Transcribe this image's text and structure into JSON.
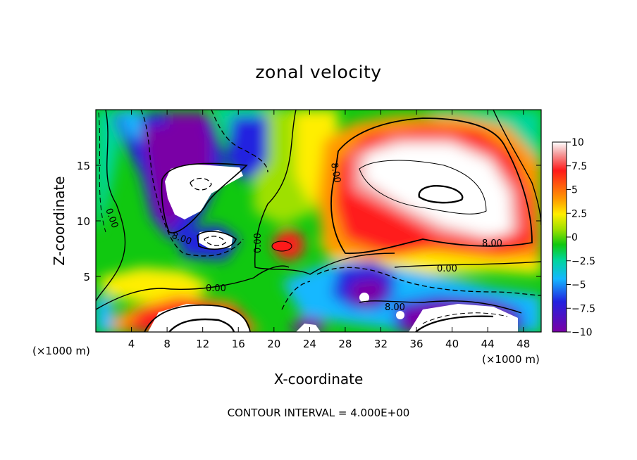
{
  "chart_data": {
    "type": "heatmap",
    "title": "zonal velocity",
    "xlabel": "X-coordinate",
    "ylabel": "Z-coordinate",
    "x_unit_label": "(×1000 m)",
    "x_ticks": [
      4,
      8,
      12,
      16,
      20,
      24,
      28,
      32,
      36,
      40,
      44,
      48
    ],
    "y_ticks": [
      5,
      10,
      15
    ],
    "xlim": [
      0,
      50
    ],
    "ylim": [
      0,
      20
    ],
    "colorbar": {
      "ticks": [
        "10",
        "7.5",
        "5",
        "2.5",
        "0",
        "−2.5",
        "−5",
        "−7.5",
        "−10"
      ],
      "range": [
        -10,
        10
      ]
    },
    "contour_labels": [
      {
        "text": "0.00",
        "x": 2.0,
        "y": 11.0,
        "angle": 70
      },
      {
        "text": "8.00",
        "x": 9.5,
        "y": 8.2,
        "angle": 20
      },
      {
        "text": "0.00",
        "x": 18.0,
        "y": 8.3,
        "angle": -90
      },
      {
        "text": "0.00",
        "x": 13.5,
        "y": 4.0,
        "angle": 0
      },
      {
        "text": "8.00",
        "x": 27.0,
        "y": 14.0,
        "angle": 80
      },
      {
        "text": "8.00",
        "x": 44.5,
        "y": 8.2,
        "angle": 0
      },
      {
        "text": "0.00",
        "x": 40.0,
        "y": 5.8,
        "angle": 0
      },
      {
        "text": "8.00",
        "x": 32.0,
        "y": 2.2,
        "angle": 0
      }
    ],
    "footer": "CONTOUR INTERVAL = 4.000E+00"
  }
}
